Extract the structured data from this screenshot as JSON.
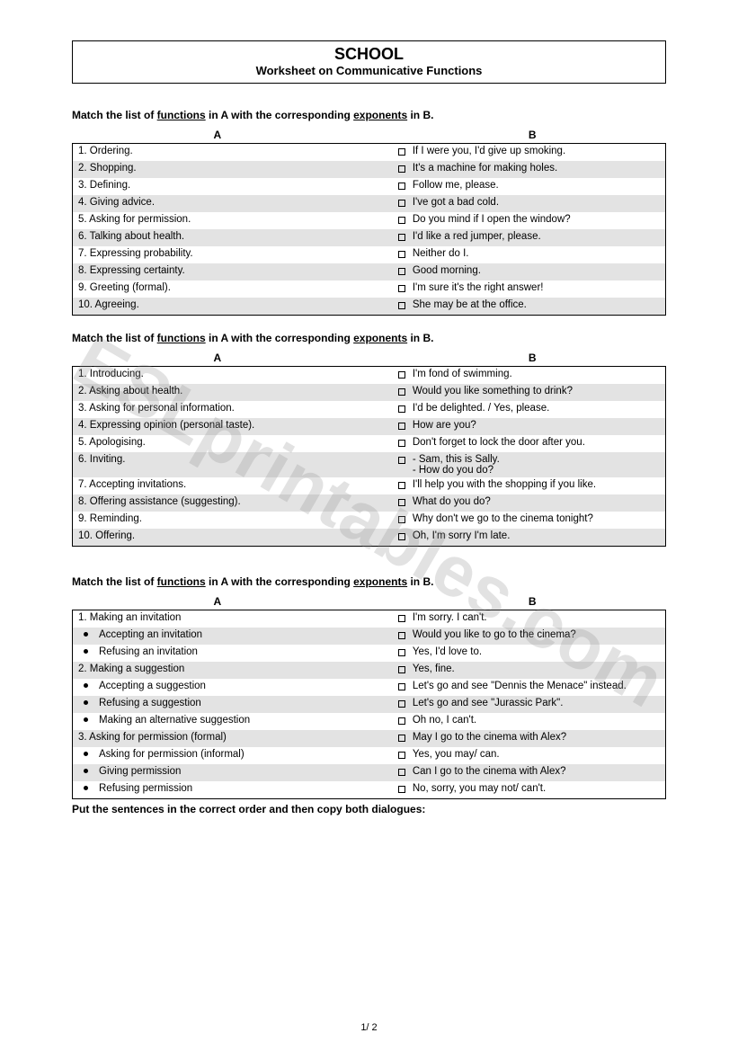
{
  "header": {
    "title": "SCHOOL",
    "subtitle": "Worksheet on Communicative Functions"
  },
  "watermark": "ESLprintables.com",
  "pagenum": "1/ 2",
  "instruction_parts": {
    "pre": "Match the list of ",
    "word1": "functions",
    "mid1": " in  A  with the corresponding ",
    "mid1b": " in A with the corresponding ",
    "word2": "exponents",
    "post": " in B."
  },
  "col_a": "A",
  "col_b": "B",
  "final_instruction": "Put the sentences in the correct order and then copy both dialogues:",
  "table1": {
    "rows": [
      {
        "a": "1. Ordering.",
        "b": "If I were you, I'd give up smoking."
      },
      {
        "a": "2. Shopping.",
        "b": "It's a machine for making holes."
      },
      {
        "a": "3. Defining.",
        "b": "Follow me, please."
      },
      {
        "a": "4. Giving advice.",
        "b": "I've got a bad cold."
      },
      {
        "a": "5. Asking for permission.",
        "b": "Do you mind if I open the window?"
      },
      {
        "a": "6. Talking about health.",
        "b": "I'd like a red jumper, please."
      },
      {
        "a": "7. Expressing probability.",
        "b": "Neither do I."
      },
      {
        "a": "8. Expressing certainty.",
        "b": "Good morning."
      },
      {
        "a": "9. Greeting (formal).",
        "b": "I'm sure it's the right answer!"
      },
      {
        "a": "10. Agreeing.",
        "b": "She may be at the office."
      }
    ]
  },
  "table2": {
    "rows": [
      {
        "a": "1. Introducing.",
        "b": "I'm fond of swimming."
      },
      {
        "a": "2. Asking about health.",
        "b": "Would you like something to drink?"
      },
      {
        "a": "3. Asking for personal information.",
        "b": "I'd be delighted. / Yes, please."
      },
      {
        "a": "4. Expressing opinion (personal taste).",
        "b": "How are you?"
      },
      {
        "a": "5. Apologising.",
        "b": "Don't forget to lock the door after you."
      },
      {
        "a": "6. Inviting.",
        "b": "- Sam, this is Sally.\n- How do you do?"
      },
      {
        "a": "7. Accepting invitations.",
        "b": "I'll help you with the shopping if you like."
      },
      {
        "a": "8. Offering assistance (suggesting).",
        "b": "What do you do?"
      },
      {
        "a": "9. Reminding.",
        "b": "Why don't we go to the cinema tonight?"
      },
      {
        "a": "10. Offering.",
        "b": "Oh, I'm sorry I'm late."
      }
    ]
  },
  "table3": {
    "rows": [
      {
        "a_num": "1.",
        "a": "Making an invitation",
        "b": "I'm sorry. I can't."
      },
      {
        "a_bullet": true,
        "a": "Accepting an invitation",
        "b": "Would you like to go to the cinema?"
      },
      {
        "a_bullet": true,
        "a": "Refusing an invitation",
        "b": "Yes, I'd love to."
      },
      {
        "a_num": "2.",
        "a": "Making a suggestion",
        "b": "Yes, fine."
      },
      {
        "a_bullet": true,
        "a": "Accepting a suggestion",
        "b": "Let's go and see \"Dennis the Menace\" instead."
      },
      {
        "a_bullet": true,
        "a": "Refusing a suggestion",
        "b": " Let's go and see \"Jurassic Park\"."
      },
      {
        "a_bullet": true,
        "a": "Making an alternative suggestion",
        "b": "Oh no, I can't."
      },
      {
        "a_num": "3.",
        "a": "Asking for permission (formal)",
        "b": "May I go to the cinema with Alex?"
      },
      {
        "a_bullet": true,
        "a": "Asking for permission (informal)",
        "b": "Yes, you may/ can."
      },
      {
        "a_bullet": true,
        "a": "Giving permission",
        "b": "Can I go to the cinema with Alex?"
      },
      {
        "a_bullet": true,
        "a": "Refusing permission",
        "b": "No, sorry, you may not/ can't."
      }
    ]
  }
}
